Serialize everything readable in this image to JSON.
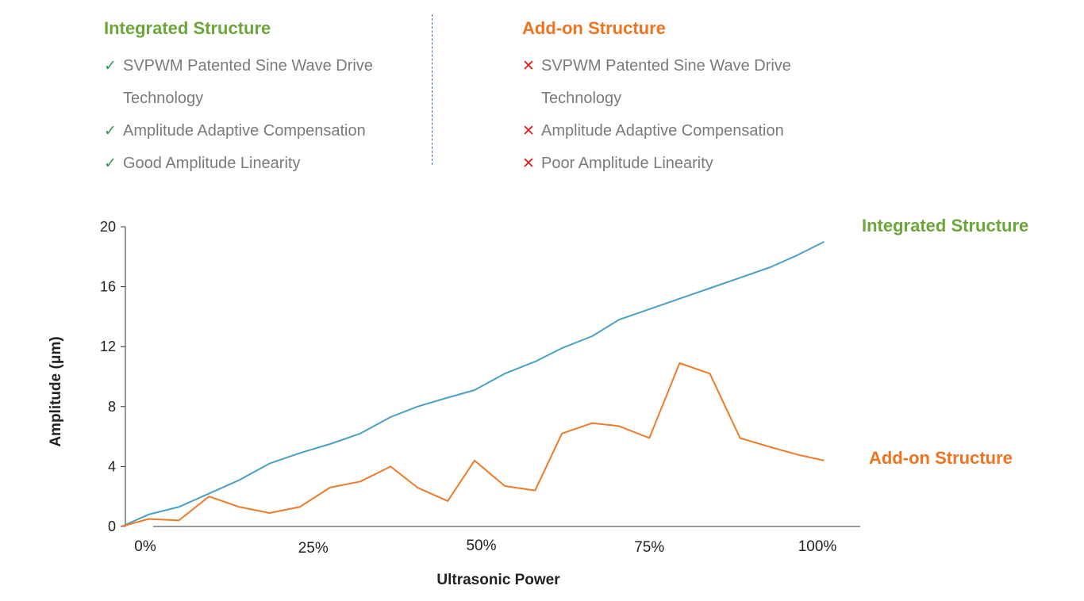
{
  "panels": {
    "left": {
      "title": "Integrated Structure",
      "items": [
        {
          "mark": "✓",
          "text": "SVPWM Patented Sine Wave Drive",
          "cont": "Technology"
        },
        {
          "mark": "✓",
          "text": "Amplitude Adaptive Compensation"
        },
        {
          "mark": "✓",
          "text": "Good Amplitude Linearity"
        }
      ]
    },
    "right": {
      "title": "Add-on Structure",
      "items": [
        {
          "mark": "✕",
          "text": "SVPWM Patented Sine Wave Drive",
          "cont": "Technology"
        },
        {
          "mark": "✕",
          "text": "Amplitude Adaptive Compensation"
        },
        {
          "mark": "✕",
          "text": "Poor Amplitude Linearity"
        }
      ]
    }
  },
  "colors": {
    "integrated_title": "#6aa63a",
    "addon_title": "#f07320",
    "integrated_line": "#4aa0c4",
    "addon_line": "#f07a28",
    "check": "#2e9a4a",
    "cross": "#e02020",
    "divider": "#3d6a99"
  },
  "chart_data": {
    "type": "line",
    "xlabel": "Ultrasonic Power",
    "ylabel": "Amplitude (μm)",
    "ylim": [
      0,
      20
    ],
    "yticks": [
      0,
      4,
      8,
      12,
      16,
      20
    ],
    "xticks": [
      {
        "value": 0,
        "label": "0%"
      },
      {
        "value": 25,
        "label": "25%"
      },
      {
        "value": 50,
        "label": "50%"
      },
      {
        "value": 75,
        "label": "75%"
      },
      {
        "value": 100,
        "label": "100%"
      }
    ],
    "grid": false,
    "series": [
      {
        "name": "Integrated Structure",
        "x": [
          -3.5,
          0.5,
          5,
          9.5,
          14,
          18.5,
          23,
          27.5,
          32,
          36.5,
          40.5,
          45,
          49,
          53.5,
          58,
          62,
          66.5,
          70.5,
          75,
          79.5,
          84,
          88.5,
          93,
          97,
          101
        ],
        "y": [
          0,
          0.8,
          1.3,
          2.2,
          3.1,
          4.2,
          4.9,
          5.5,
          6.2,
          7.3,
          8.0,
          8.6,
          9.1,
          10.2,
          11.0,
          11.9,
          12.7,
          13.8,
          14.5,
          15.2,
          15.9,
          16.6,
          17.3,
          18.1,
          19.0
        ]
      },
      {
        "name": "Add-on Structure",
        "x": [
          -3.5,
          0.5,
          5,
          9.5,
          14,
          18.5,
          23,
          27.5,
          32,
          36.5,
          40.5,
          45,
          49,
          53.5,
          58,
          62,
          66.5,
          70.5,
          75,
          79.5,
          84,
          88.5,
          93,
          97,
          101
        ],
        "y": [
          0,
          0.5,
          0.4,
          2.0,
          1.3,
          0.9,
          1.3,
          2.6,
          3.0,
          4.0,
          2.6,
          1.7,
          4.4,
          2.7,
          2.4,
          6.2,
          6.9,
          6.7,
          5.9,
          10.9,
          10.2,
          5.9,
          5.3,
          4.8,
          4.4
        ]
      }
    ]
  }
}
